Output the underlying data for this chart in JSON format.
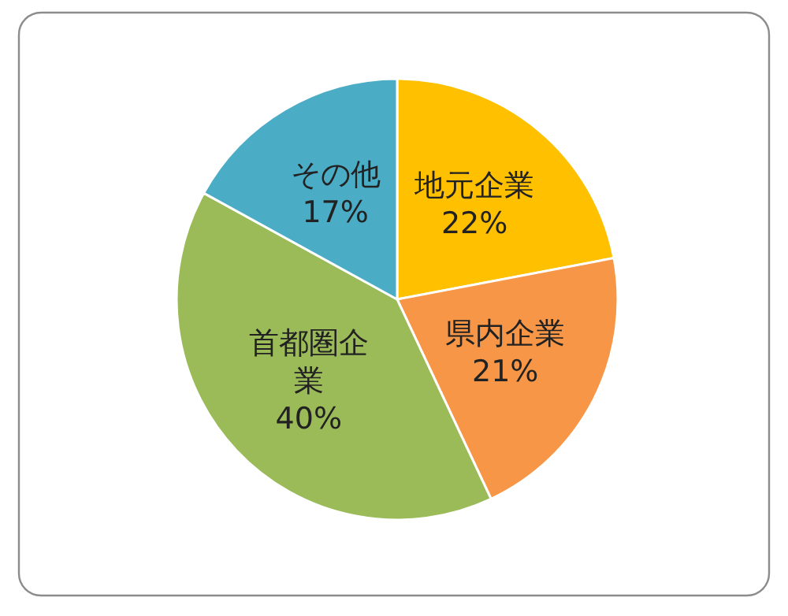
{
  "chart_data": {
    "type": "pie",
    "categories": [
      "地元企業",
      "県内企業",
      "首都圏企業",
      "その他"
    ],
    "values": [
      22,
      21,
      40,
      17
    ],
    "colors": [
      "#ffc000",
      "#f79646",
      "#9bbb59",
      "#4bacc6"
    ],
    "value_labels": [
      "22%",
      "21%",
      "40%",
      "17%"
    ],
    "legend": false
  }
}
